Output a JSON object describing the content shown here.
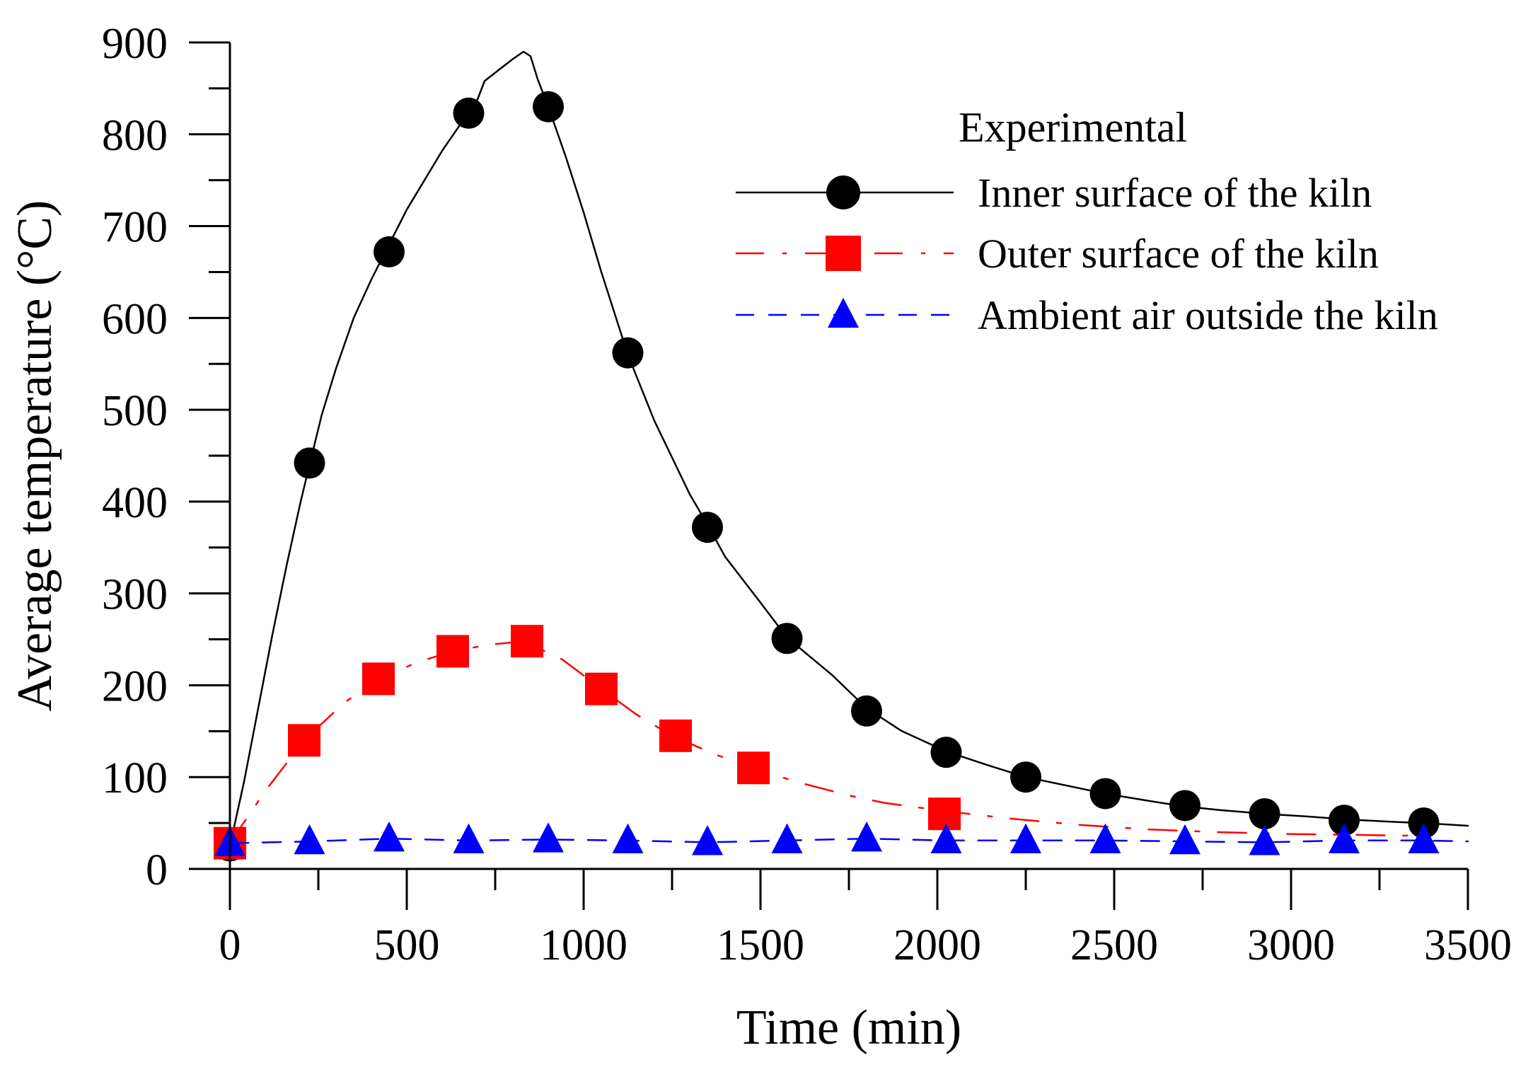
{
  "chart_data": {
    "type": "line",
    "title": "",
    "xlabel": "Time (min)",
    "ylabel": "Average temperature (°C)",
    "xlim": [
      0,
      3500
    ],
    "ylim": [
      0,
      900
    ],
    "xticks": [
      0,
      500,
      1000,
      1500,
      2000,
      2500,
      3000,
      3500
    ],
    "xtick_labels": [
      "0",
      "500",
      "1000",
      "1500",
      "2000",
      "2500",
      "3000",
      "3500"
    ],
    "yticks": [
      0,
      100,
      200,
      300,
      400,
      500,
      600,
      700,
      800,
      900
    ],
    "ytick_labels": [
      "0",
      "100",
      "200",
      "300",
      "400",
      "500",
      "600",
      "700",
      "800",
      "900"
    ],
    "grid": false,
    "legend": {
      "title": "Experimental",
      "position": "top-right",
      "entries": [
        "Inner surface of the kiln",
        "Outer surface of the kiln",
        "Ambient air outside the kiln"
      ]
    },
    "series": [
      {
        "name": "Inner surface of the kiln",
        "color": "#000000",
        "line_style": "solid",
        "marker": "circle",
        "marker_color": "#000000",
        "curve": {
          "x": [
            0,
            40,
            80,
            120,
            160,
            200,
            225,
            260,
            300,
            350,
            400,
            450,
            500,
            550,
            600,
            650,
            675,
            700,
            720,
            760,
            800,
            830,
            850,
            870,
            900,
            950,
            1000,
            1050,
            1100,
            1125,
            1200,
            1300,
            1350,
            1400,
            1500,
            1575,
            1700,
            1800,
            1900,
            2025,
            2150,
            2250,
            2400,
            2475,
            2600,
            2700,
            2800,
            2925,
            3050,
            3150,
            3300,
            3375,
            3500
          ],
          "y": [
            25,
            95,
            175,
            255,
            330,
            400,
            440,
            495,
            545,
            600,
            642,
            680,
            718,
            750,
            782,
            810,
            823,
            838,
            858,
            870,
            882,
            890,
            885,
            860,
            830,
            775,
            715,
            650,
            590,
            560,
            488,
            408,
            375,
            340,
            290,
            252,
            212,
            175,
            150,
            128,
            112,
            100,
            88,
            82,
            74,
            68,
            64,
            60,
            57,
            54,
            51,
            50,
            47
          ]
        },
        "markers": {
          "x": [
            0,
            225,
            450,
            675,
            900,
            1125,
            1350,
            1575,
            1800,
            2025,
            2250,
            2475,
            2700,
            2925,
            3150,
            3375
          ],
          "y": [
            25,
            442,
            672,
            823,
            830,
            562,
            372,
            251,
            172,
            127,
            100,
            82,
            69,
            60,
            53,
            50
          ]
        }
      },
      {
        "name": "Outer surface of the kiln",
        "color": "#ff0000",
        "line_style": "dashdot",
        "marker": "square",
        "marker_color": "#ff0000",
        "curve": {
          "x": [
            0,
            100,
            210,
            320,
            420,
            530,
            630,
            730,
            830,
            940,
            1050,
            1150,
            1250,
            1370,
            1480,
            1600,
            1750,
            1850,
            2020,
            2200,
            2400,
            2600,
            2800,
            3000,
            3200,
            3380
          ],
          "y": [
            28,
            85,
            140,
            180,
            207,
            225,
            237,
            244,
            248,
            228,
            196,
            168,
            145,
            125,
            110,
            95,
            80,
            72,
            63,
            55,
            48,
            43,
            40,
            38,
            37,
            36
          ]
        },
        "markers": {
          "x": [
            0,
            210,
            420,
            630,
            840,
            1050,
            1260,
            1480,
            2020
          ],
          "y": [
            28,
            140,
            207,
            237,
            248,
            196,
            145,
            110,
            60
          ]
        }
      },
      {
        "name": "Ambient air outside the kiln",
        "color": "#0000ff",
        "line_style": "dashed",
        "marker": "triangle",
        "marker_color": "#0000ff",
        "curve": {
          "x": [
            0,
            225,
            450,
            675,
            900,
            1125,
            1350,
            1575,
            1800,
            2025,
            2250,
            2475,
            2700,
            2925,
            3150,
            3375,
            3500
          ],
          "y": [
            28,
            30,
            33,
            31,
            32,
            31,
            29,
            31,
            33,
            31,
            31,
            31,
            30,
            29,
            31,
            31,
            30
          ]
        },
        "markers": {
          "x": [
            0,
            225,
            450,
            675,
            900,
            1125,
            1350,
            1575,
            1800,
            2025,
            2250,
            2475,
            2700,
            2925,
            3150,
            3375
          ],
          "y": [
            28,
            30,
            33,
            31,
            32,
            31,
            29,
            31,
            33,
            31,
            31,
            31,
            30,
            29,
            31,
            31
          ]
        }
      }
    ]
  }
}
